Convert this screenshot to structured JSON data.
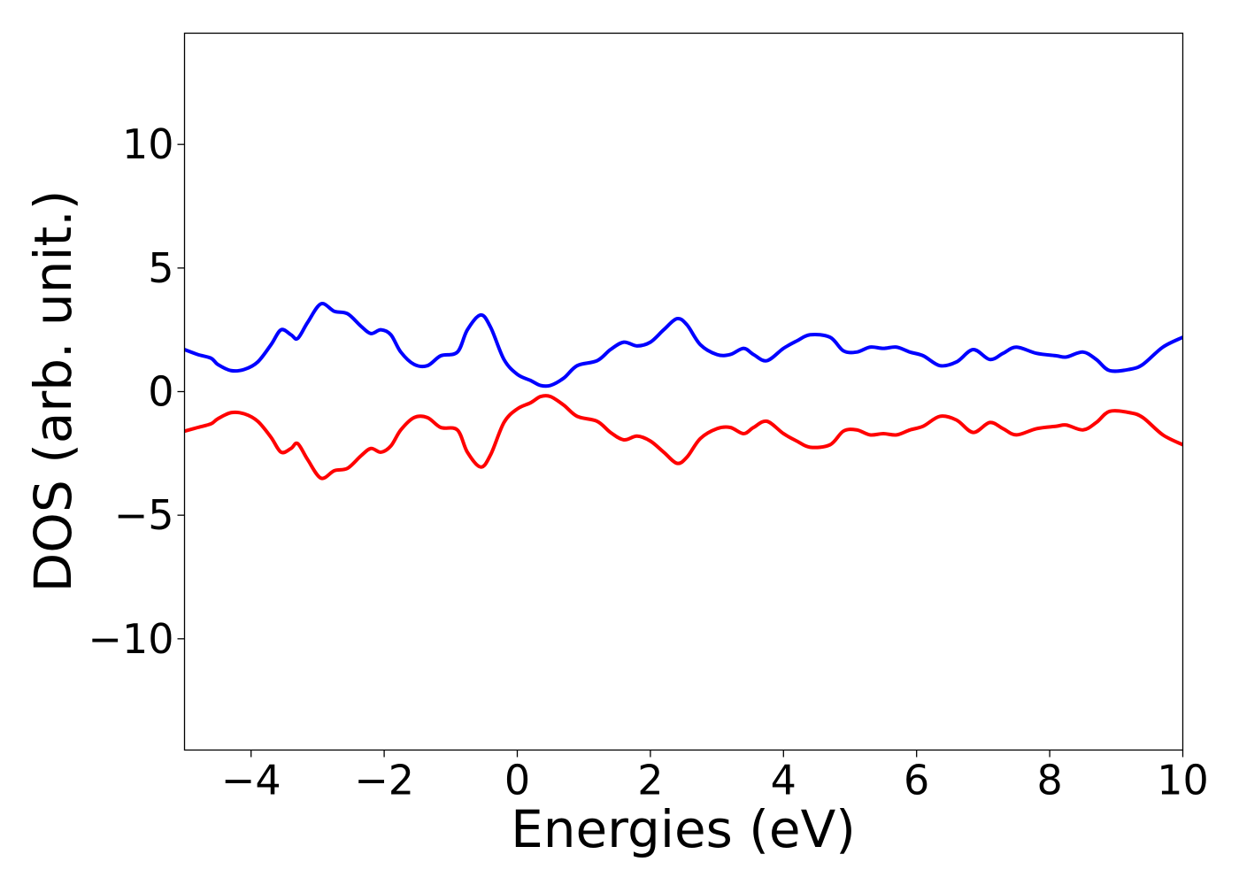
{
  "chart_data": {
    "type": "line",
    "title": "",
    "xlabel": "Energies (eV)",
    "ylabel": "DOS (arb. unit.)",
    "xlim": [
      -5,
      10
    ],
    "ylim": [
      -14.5,
      14.5
    ],
    "x_ticks": [
      -4,
      -2,
      0,
      2,
      4,
      6,
      8,
      10
    ],
    "x_tick_labels": [
      "−4",
      "−2",
      "0",
      "2",
      "4",
      "6",
      "8",
      "10"
    ],
    "y_ticks": [
      -10,
      -5,
      0,
      5,
      10
    ],
    "y_tick_labels": [
      "−10",
      "−5",
      "0",
      "5",
      "10"
    ],
    "grid": false,
    "legend": "none",
    "series": [
      {
        "color": "#0000ff",
        "points": [
          [
            -5.0,
            1.7
          ],
          [
            -4.8,
            1.5
          ],
          [
            -4.6,
            1.35
          ],
          [
            -4.5,
            1.1
          ],
          [
            -4.3,
            0.85
          ],
          [
            -4.1,
            0.9
          ],
          [
            -3.9,
            1.2
          ],
          [
            -3.7,
            1.9
          ],
          [
            -3.55,
            2.5
          ],
          [
            -3.4,
            2.3
          ],
          [
            -3.3,
            2.15
          ],
          [
            -3.15,
            2.8
          ],
          [
            -2.95,
            3.55
          ],
          [
            -2.75,
            3.25
          ],
          [
            -2.55,
            3.15
          ],
          [
            -2.35,
            2.65
          ],
          [
            -2.2,
            2.35
          ],
          [
            -2.05,
            2.5
          ],
          [
            -1.9,
            2.3
          ],
          [
            -1.75,
            1.6
          ],
          [
            -1.55,
            1.1
          ],
          [
            -1.35,
            1.05
          ],
          [
            -1.15,
            1.45
          ],
          [
            -0.9,
            1.6
          ],
          [
            -0.75,
            2.5
          ],
          [
            -0.55,
            3.1
          ],
          [
            -0.4,
            2.6
          ],
          [
            -0.2,
            1.3
          ],
          [
            0.0,
            0.7
          ],
          [
            0.2,
            0.45
          ],
          [
            0.35,
            0.25
          ],
          [
            0.5,
            0.25
          ],
          [
            0.7,
            0.55
          ],
          [
            0.9,
            1.05
          ],
          [
            1.2,
            1.25
          ],
          [
            1.4,
            1.7
          ],
          [
            1.6,
            2.0
          ],
          [
            1.8,
            1.85
          ],
          [
            2.0,
            2.0
          ],
          [
            2.2,
            2.5
          ],
          [
            2.4,
            2.95
          ],
          [
            2.55,
            2.7
          ],
          [
            2.75,
            1.9
          ],
          [
            3.0,
            1.5
          ],
          [
            3.2,
            1.5
          ],
          [
            3.4,
            1.75
          ],
          [
            3.55,
            1.5
          ],
          [
            3.75,
            1.25
          ],
          [
            4.0,
            1.75
          ],
          [
            4.2,
            2.05
          ],
          [
            4.4,
            2.3
          ],
          [
            4.7,
            2.2
          ],
          [
            4.9,
            1.65
          ],
          [
            5.1,
            1.6
          ],
          [
            5.3,
            1.8
          ],
          [
            5.5,
            1.75
          ],
          [
            5.7,
            1.8
          ],
          [
            5.9,
            1.6
          ],
          [
            6.1,
            1.45
          ],
          [
            6.35,
            1.05
          ],
          [
            6.6,
            1.2
          ],
          [
            6.85,
            1.7
          ],
          [
            7.1,
            1.3
          ],
          [
            7.3,
            1.55
          ],
          [
            7.5,
            1.8
          ],
          [
            7.8,
            1.55
          ],
          [
            8.1,
            1.45
          ],
          [
            8.25,
            1.4
          ],
          [
            8.5,
            1.6
          ],
          [
            8.7,
            1.3
          ],
          [
            8.9,
            0.85
          ],
          [
            9.2,
            0.9
          ],
          [
            9.4,
            1.1
          ],
          [
            9.7,
            1.8
          ],
          [
            10.0,
            2.2
          ]
        ]
      },
      {
        "color": "#ff0000",
        "points": [
          [
            -5.0,
            -1.6
          ],
          [
            -4.8,
            -1.45
          ],
          [
            -4.6,
            -1.3
          ],
          [
            -4.5,
            -1.1
          ],
          [
            -4.3,
            -0.85
          ],
          [
            -4.1,
            -0.9
          ],
          [
            -3.9,
            -1.2
          ],
          [
            -3.7,
            -1.85
          ],
          [
            -3.55,
            -2.45
          ],
          [
            -3.4,
            -2.3
          ],
          [
            -3.3,
            -2.1
          ],
          [
            -3.15,
            -2.75
          ],
          [
            -2.95,
            -3.5
          ],
          [
            -2.75,
            -3.2
          ],
          [
            -2.55,
            -3.1
          ],
          [
            -2.35,
            -2.6
          ],
          [
            -2.2,
            -2.3
          ],
          [
            -2.05,
            -2.45
          ],
          [
            -1.9,
            -2.2
          ],
          [
            -1.75,
            -1.55
          ],
          [
            -1.55,
            -1.05
          ],
          [
            -1.35,
            -1.05
          ],
          [
            -1.15,
            -1.45
          ],
          [
            -0.9,
            -1.55
          ],
          [
            -0.75,
            -2.45
          ],
          [
            -0.55,
            -3.05
          ],
          [
            -0.4,
            -2.55
          ],
          [
            -0.2,
            -1.25
          ],
          [
            0.0,
            -0.7
          ],
          [
            0.2,
            -0.45
          ],
          [
            0.35,
            -0.2
          ],
          [
            0.5,
            -0.2
          ],
          [
            0.7,
            -0.55
          ],
          [
            0.9,
            -1.0
          ],
          [
            1.2,
            -1.2
          ],
          [
            1.4,
            -1.65
          ],
          [
            1.6,
            -1.95
          ],
          [
            1.8,
            -1.8
          ],
          [
            2.0,
            -2.0
          ],
          [
            2.2,
            -2.45
          ],
          [
            2.4,
            -2.9
          ],
          [
            2.55,
            -2.65
          ],
          [
            2.75,
            -1.9
          ],
          [
            3.0,
            -1.5
          ],
          [
            3.2,
            -1.45
          ],
          [
            3.4,
            -1.7
          ],
          [
            3.55,
            -1.45
          ],
          [
            3.75,
            -1.2
          ],
          [
            4.0,
            -1.7
          ],
          [
            4.2,
            -2.0
          ],
          [
            4.4,
            -2.25
          ],
          [
            4.7,
            -2.15
          ],
          [
            4.9,
            -1.6
          ],
          [
            5.1,
            -1.55
          ],
          [
            5.3,
            -1.75
          ],
          [
            5.5,
            -1.7
          ],
          [
            5.7,
            -1.75
          ],
          [
            5.9,
            -1.55
          ],
          [
            6.1,
            -1.4
          ],
          [
            6.35,
            -1.0
          ],
          [
            6.6,
            -1.15
          ],
          [
            6.85,
            -1.65
          ],
          [
            7.1,
            -1.25
          ],
          [
            7.3,
            -1.5
          ],
          [
            7.5,
            -1.75
          ],
          [
            7.8,
            -1.5
          ],
          [
            8.1,
            -1.4
          ],
          [
            8.25,
            -1.35
          ],
          [
            8.5,
            -1.55
          ],
          [
            8.7,
            -1.25
          ],
          [
            8.9,
            -0.8
          ],
          [
            9.2,
            -0.85
          ],
          [
            9.4,
            -1.05
          ],
          [
            9.7,
            -1.75
          ],
          [
            10.0,
            -2.15
          ]
        ]
      }
    ]
  }
}
